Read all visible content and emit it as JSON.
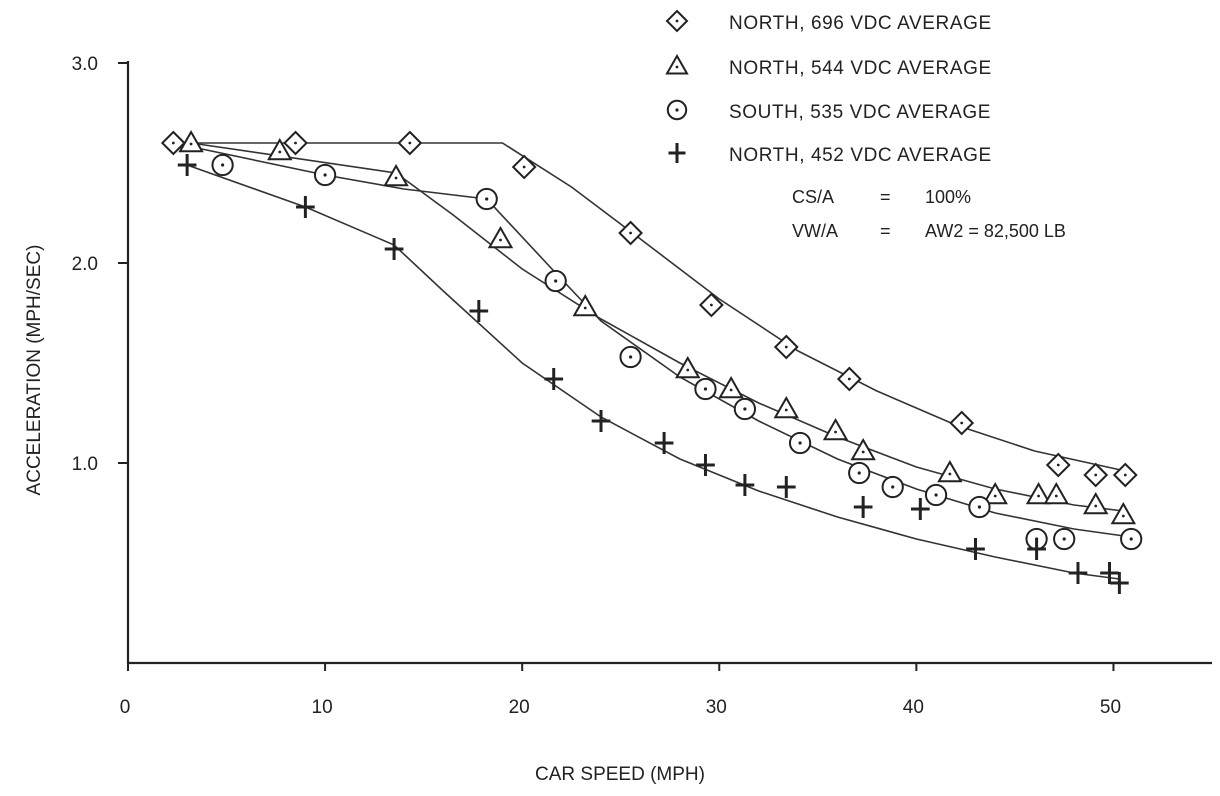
{
  "chart_data": {
    "type": "scatter",
    "title": "",
    "xlabel": "CAR SPEED (MPH)",
    "ylabel": "ACCELERATION (MPH/SEC)",
    "xlim": [
      0,
      55
    ],
    "ylim": [
      0,
      3.0
    ],
    "x_ticks": [
      "0",
      "10",
      "20",
      "30",
      "40",
      "50"
    ],
    "y_ticks": [
      "1.0",
      "2.0",
      "3.0"
    ],
    "grid": false,
    "legend_position": "top-right",
    "series": [
      {
        "name": "NORTH, 696 VDC AVERAGE",
        "marker": "diamond",
        "points": [
          [
            2.3,
            2.6
          ],
          [
            8.5,
            2.6
          ],
          [
            14.3,
            2.6
          ],
          [
            20.1,
            2.48
          ],
          [
            25.5,
            2.15
          ],
          [
            29.6,
            1.79
          ],
          [
            33.4,
            1.58
          ],
          [
            36.6,
            1.42
          ],
          [
            42.3,
            1.2
          ],
          [
            47.2,
            0.99
          ],
          [
            49.1,
            0.94
          ],
          [
            50.6,
            0.94
          ]
        ],
        "fit": [
          [
            2.3,
            2.6
          ],
          [
            19.0,
            2.6
          ],
          [
            22.5,
            2.38
          ],
          [
            26.0,
            2.12
          ],
          [
            30.0,
            1.82
          ],
          [
            34.0,
            1.56
          ],
          [
            38.0,
            1.36
          ],
          [
            42.0,
            1.19
          ],
          [
            46.0,
            1.06
          ],
          [
            50.6,
            0.96
          ]
        ]
      },
      {
        "name": "NORTH, 544 VDC AVERAGE",
        "marker": "triangle",
        "points": [
          [
            3.2,
            2.6
          ],
          [
            7.7,
            2.56
          ],
          [
            13.6,
            2.43
          ],
          [
            18.9,
            2.12
          ],
          [
            23.2,
            1.78
          ],
          [
            28.4,
            1.47
          ],
          [
            30.6,
            1.37
          ],
          [
            33.4,
            1.27
          ],
          [
            35.9,
            1.16
          ],
          [
            37.3,
            1.06
          ],
          [
            41.7,
            0.95
          ],
          [
            44.0,
            0.84
          ],
          [
            46.2,
            0.84
          ],
          [
            47.1,
            0.84
          ],
          [
            49.1,
            0.79
          ],
          [
            50.5,
            0.74
          ]
        ],
        "fit": [
          [
            3.2,
            2.6
          ],
          [
            13.6,
            2.45
          ],
          [
            16.5,
            2.24
          ],
          [
            20.0,
            1.97
          ],
          [
            24.0,
            1.72
          ],
          [
            28.0,
            1.5
          ],
          [
            32.0,
            1.3
          ],
          [
            36.0,
            1.13
          ],
          [
            40.0,
            0.98
          ],
          [
            44.0,
            0.87
          ],
          [
            48.0,
            0.79
          ],
          [
            50.5,
            0.76
          ]
        ]
      },
      {
        "name": "SOUTH, 535 VDC AVERAGE",
        "marker": "circle",
        "points": [
          [
            4.8,
            2.49
          ],
          [
            10.0,
            2.44
          ],
          [
            18.2,
            2.32
          ],
          [
            21.7,
            1.91
          ],
          [
            25.5,
            1.53
          ],
          [
            29.3,
            1.37
          ],
          [
            31.3,
            1.27
          ],
          [
            34.1,
            1.1
          ],
          [
            37.1,
            0.95
          ],
          [
            38.8,
            0.88
          ],
          [
            41.0,
            0.84
          ],
          [
            43.2,
            0.78
          ],
          [
            46.1,
            0.62
          ],
          [
            47.5,
            0.62
          ],
          [
            50.9,
            0.62
          ]
        ],
        "fit": [
          [
            2.3,
            2.6
          ],
          [
            10.0,
            2.44
          ],
          [
            14.0,
            2.37
          ],
          [
            18.2,
            2.32
          ],
          [
            21.7,
            1.95
          ],
          [
            24.0,
            1.71
          ],
          [
            28.0,
            1.43
          ],
          [
            32.0,
            1.21
          ],
          [
            36.0,
            1.02
          ],
          [
            40.0,
            0.87
          ],
          [
            44.0,
            0.75
          ],
          [
            48.0,
            0.67
          ],
          [
            50.9,
            0.63
          ]
        ]
      },
      {
        "name": "NORTH, 452 VDC AVERAGE",
        "marker": "plus",
        "points": [
          [
            3.0,
            2.49
          ],
          [
            9.0,
            2.28
          ],
          [
            13.5,
            2.07
          ],
          [
            17.8,
            1.76
          ],
          [
            21.6,
            1.42
          ],
          [
            24.0,
            1.21
          ],
          [
            27.2,
            1.1
          ],
          [
            29.3,
            0.99
          ],
          [
            31.3,
            0.89
          ],
          [
            33.4,
            0.88
          ],
          [
            37.3,
            0.78
          ],
          [
            40.2,
            0.77
          ],
          [
            43.0,
            0.57
          ],
          [
            46.1,
            0.57
          ],
          [
            48.2,
            0.45
          ],
          [
            49.8,
            0.45
          ],
          [
            50.3,
            0.4
          ]
        ],
        "fit": [
          [
            3.0,
            2.49
          ],
          [
            9.0,
            2.28
          ],
          [
            13.5,
            2.09
          ],
          [
            16.0,
            1.86
          ],
          [
            20.0,
            1.5
          ],
          [
            24.0,
            1.23
          ],
          [
            28.0,
            1.02
          ],
          [
            32.0,
            0.86
          ],
          [
            36.0,
            0.73
          ],
          [
            40.0,
            0.62
          ],
          [
            44.0,
            0.53
          ],
          [
            48.0,
            0.45
          ],
          [
            50.3,
            0.42
          ]
        ]
      }
    ],
    "annotations": [
      {
        "label": "CS/A",
        "eq": "=",
        "value": "100%"
      },
      {
        "label": "VW/A",
        "eq": "=",
        "value": "AW2  =  82,500 LB"
      }
    ]
  }
}
